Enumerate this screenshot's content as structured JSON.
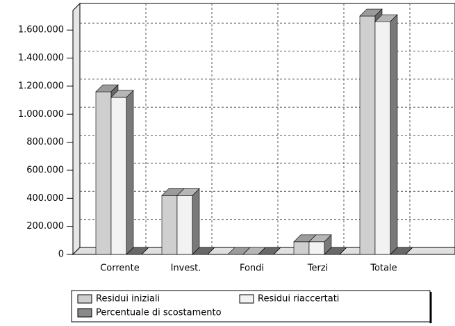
{
  "chart_data": {
    "type": "bar3d",
    "categories": [
      "Corrente",
      "Invest.",
      "Fondi",
      "Terzi",
      "Totale"
    ],
    "series": [
      {
        "name": "Residui iniziali",
        "color": "#cfcfcf",
        "values": [
          1160000,
          420000,
          0,
          90000,
          1700000
        ]
      },
      {
        "name": "Residui riaccertati",
        "color": "#f2f2f2",
        "values": [
          1120000,
          420000,
          0,
          90000,
          1660000
        ]
      },
      {
        "name": "Percentuale di scostamento",
        "color": "#8a8a8a",
        "values": [
          0,
          0,
          0,
          0,
          0
        ]
      }
    ],
    "ylim": [
      0,
      1740000
    ],
    "yticks": [
      0,
      {
        "value": 200000,
        "label": "200.000"
      },
      {
        "value": 400000,
        "label": "400.000"
      },
      {
        "value": 600000,
        "label": "600.000"
      },
      {
        "value": 800000,
        "label": "800.000"
      },
      {
        "value": 1000000,
        "label": "1.000.000"
      },
      {
        "value": 1200000,
        "label": "1.200.000"
      },
      {
        "value": 1400000,
        "label": "1.400.000"
      },
      {
        "value": 1600000,
        "label": "1.600.000"
      }
    ],
    "grid": true
  }
}
